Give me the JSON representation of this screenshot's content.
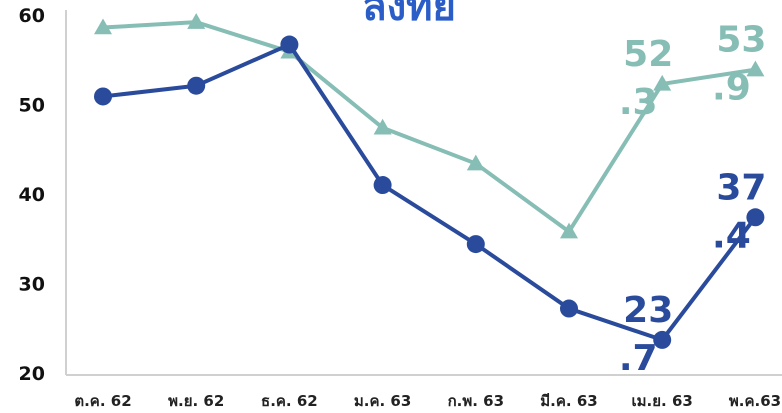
{
  "chart_data": {
    "type": "line",
    "title": "ลงทัย",
    "xlabel": "",
    "ylabel": "",
    "ylim": [
      20,
      60
    ],
    "yticks": [
      "20",
      "30",
      "40",
      "50",
      "60"
    ],
    "grid": false,
    "categories": [
      "ต.ค. 62",
      "พ.ย. 62",
      "ธ.ค. 62",
      "ม.ค. 63",
      "ก.พ. 63",
      "มี.ค. 63",
      "เม.ย. 63",
      "พ.ค.63"
    ],
    "series": [
      {
        "name": "",
        "color": "#86BDB5",
        "marker": "triangle",
        "values": [
          58.6,
          59.2,
          55.9,
          47.4,
          43.4,
          35.8,
          52.3,
          53.9
        ],
        "labels": [
          {
            "index": 6,
            "line1": "52",
            "line2": ".3"
          },
          {
            "index": 7,
            "line1": "53",
            "line2": ".9"
          }
        ]
      },
      {
        "name": "",
        "color": "#2A4B9B",
        "marker": "circle",
        "values": [
          50.9,
          52.1,
          56.7,
          41.0,
          34.4,
          27.2,
          23.7,
          37.4
        ],
        "labels": [
          {
            "index": 6,
            "line1": "23",
            "line2": ".7"
          },
          {
            "index": 7,
            "line1": "37",
            "line2": ".4"
          }
        ]
      }
    ],
    "title_color": "#2A5DC8"
  }
}
